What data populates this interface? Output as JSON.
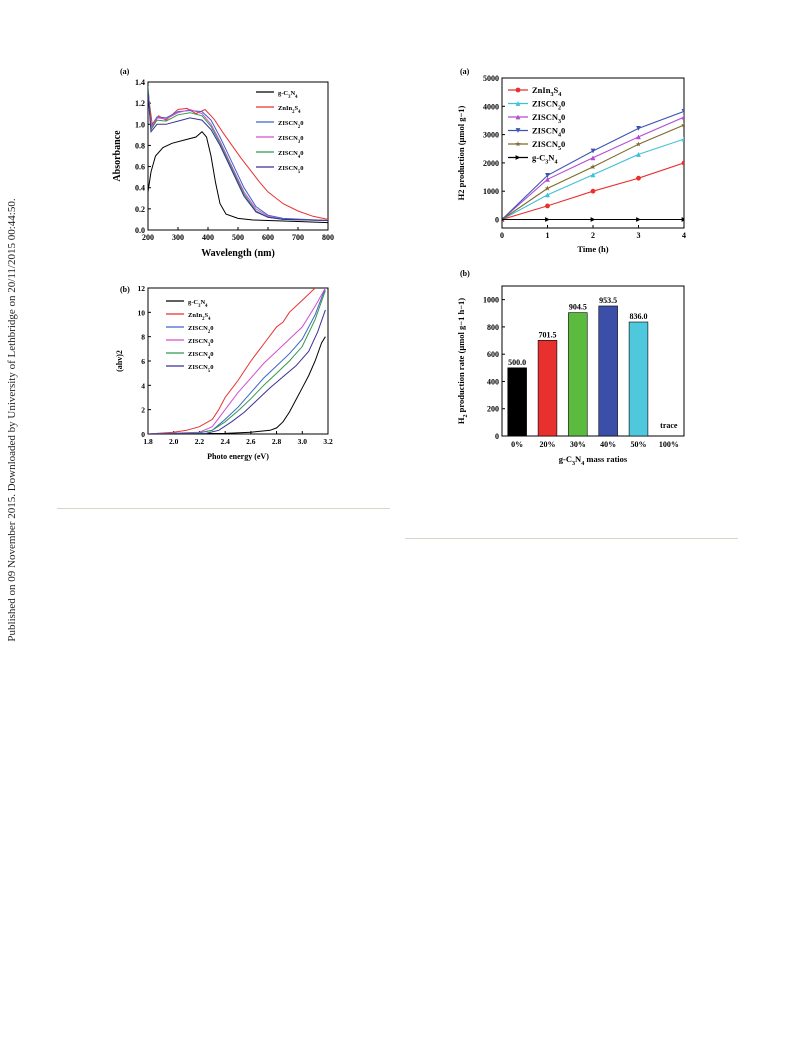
{
  "page": {
    "side_note": "Published on 09 November 2015. Downloaded by University of Lethbridge on 20/11/2015 00:44:50."
  },
  "chart_data": [
    {
      "type": "line",
      "panel_label": "(a)",
      "xlabel": "Wavelength (nm)",
      "ylabel": "Absorbance",
      "xlim": [
        200,
        800
      ],
      "ylim": [
        0.0,
        1.4
      ],
      "x_ticks": [
        "200",
        "300",
        "400",
        "500",
        "600",
        "700",
        "800"
      ],
      "y_ticks": [
        "0.0",
        "0.2",
        "0.4",
        "0.6",
        "0.8",
        "1.0",
        "1.2",
        "1.4"
      ],
      "legend_position": "top-right",
      "series": [
        {
          "name": "g-C3N4",
          "color": "#000000",
          "points": [
            [
              200,
              0.36
            ],
            [
              210,
              0.55
            ],
            [
              225,
              0.7
            ],
            [
              250,
              0.78
            ],
            [
              280,
              0.82
            ],
            [
              320,
              0.85
            ],
            [
              360,
              0.88
            ],
            [
              380,
              0.93
            ],
            [
              395,
              0.88
            ],
            [
              410,
              0.7
            ],
            [
              425,
              0.45
            ],
            [
              440,
              0.25
            ],
            [
              460,
              0.15
            ],
            [
              500,
              0.11
            ],
            [
              550,
              0.095
            ],
            [
              600,
              0.09
            ],
            [
              700,
              0.08
            ],
            [
              800,
              0.07
            ]
          ]
        },
        {
          "name": "ZnIn2S4",
          "color": "#e8312f",
          "points": [
            [
              200,
              1.3
            ],
            [
              215,
              0.98
            ],
            [
              235,
              1.08
            ],
            [
              260,
              1.04
            ],
            [
              300,
              1.14
            ],
            [
              330,
              1.15
            ],
            [
              360,
              1.1
            ],
            [
              390,
              1.14
            ],
            [
              420,
              1.05
            ],
            [
              450,
              0.92
            ],
            [
              480,
              0.8
            ],
            [
              510,
              0.68
            ],
            [
              540,
              0.57
            ],
            [
              570,
              0.46
            ],
            [
              600,
              0.36
            ],
            [
              650,
              0.25
            ],
            [
              700,
              0.18
            ],
            [
              750,
              0.13
            ],
            [
              800,
              0.1
            ]
          ]
        },
        {
          "name": "ZISCN20",
          "color": "#3c63c9",
          "points": [
            [
              200,
              1.36
            ],
            [
              210,
              0.98
            ],
            [
              230,
              1.07
            ],
            [
              260,
              1.06
            ],
            [
              300,
              1.12
            ],
            [
              340,
              1.13
            ],
            [
              380,
              1.12
            ],
            [
              410,
              1.04
            ],
            [
              440,
              0.88
            ],
            [
              480,
              0.64
            ],
            [
              520,
              0.4
            ],
            [
              560,
              0.22
            ],
            [
              600,
              0.14
            ],
            [
              650,
              0.11
            ],
            [
              800,
              0.09
            ]
          ]
        },
        {
          "name": "ZISCN30",
          "color": "#d34fd0",
          "points": [
            [
              200,
              1.34
            ],
            [
              210,
              0.97
            ],
            [
              230,
              1.06
            ],
            [
              260,
              1.05
            ],
            [
              300,
              1.11
            ],
            [
              340,
              1.14
            ],
            [
              380,
              1.1
            ],
            [
              410,
              1.0
            ],
            [
              440,
              0.84
            ],
            [
              480,
              0.6
            ],
            [
              520,
              0.36
            ],
            [
              560,
              0.2
            ],
            [
              600,
              0.13
            ],
            [
              650,
              0.1
            ],
            [
              800,
              0.09
            ]
          ]
        },
        {
          "name": "ZISCN40",
          "color": "#2f9a4c",
          "points": [
            [
              200,
              1.35
            ],
            [
              210,
              0.95
            ],
            [
              230,
              1.04
            ],
            [
              260,
              1.03
            ],
            [
              300,
              1.09
            ],
            [
              340,
              1.11
            ],
            [
              380,
              1.08
            ],
            [
              410,
              0.98
            ],
            [
              440,
              0.82
            ],
            [
              480,
              0.58
            ],
            [
              520,
              0.34
            ],
            [
              560,
              0.18
            ],
            [
              600,
              0.12
            ],
            [
              650,
              0.1
            ],
            [
              800,
              0.09
            ]
          ]
        },
        {
          "name": "ZISCN50",
          "color": "#3b3096",
          "points": [
            [
              200,
              1.3
            ],
            [
              210,
              0.93
            ],
            [
              230,
              1.0
            ],
            [
              260,
              1.0
            ],
            [
              300,
              1.03
            ],
            [
              340,
              1.06
            ],
            [
              380,
              1.04
            ],
            [
              410,
              0.95
            ],
            [
              440,
              0.8
            ],
            [
              480,
              0.56
            ],
            [
              520,
              0.32
            ],
            [
              560,
              0.17
            ],
            [
              600,
              0.12
            ],
            [
              650,
              0.1
            ],
            [
              800,
              0.09
            ]
          ]
        }
      ]
    },
    {
      "type": "line",
      "panel_label": "(b)",
      "xlabel": "Photo energy (eV)",
      "ylabel": "(ahv)2",
      "xlim": [
        1.8,
        3.2
      ],
      "ylim": [
        0,
        12
      ],
      "x_ticks": [
        "1.8",
        "2.0",
        "2.2",
        "2.4",
        "2.6",
        "2.8",
        "3.0",
        "3.2"
      ],
      "y_ticks": [
        "0",
        "2",
        "4",
        "6",
        "8",
        "10",
        "12"
      ],
      "legend_position": "top-left",
      "series": [
        {
          "name": "g-C3N4",
          "color": "#000000",
          "points": [
            [
              1.8,
              0.0
            ],
            [
              2.4,
              0.05
            ],
            [
              2.6,
              0.15
            ],
            [
              2.75,
              0.3
            ],
            [
              2.8,
              0.5
            ],
            [
              2.85,
              1.0
            ],
            [
              2.9,
              1.8
            ],
            [
              2.95,
              2.8
            ],
            [
              3.0,
              3.8
            ],
            [
              3.05,
              4.8
            ],
            [
              3.1,
              6.0
            ],
            [
              3.15,
              7.5
            ],
            [
              3.18,
              8.0
            ]
          ]
        },
        {
          "name": "ZnIn2S4",
          "color": "#e8312f",
          "points": [
            [
              1.8,
              0.0
            ],
            [
              2.0,
              0.15
            ],
            [
              2.1,
              0.3
            ],
            [
              2.2,
              0.6
            ],
            [
              2.3,
              1.2
            ],
            [
              2.35,
              2.0
            ],
            [
              2.4,
              3.0
            ],
            [
              2.5,
              4.4
            ],
            [
              2.6,
              6.0
            ],
            [
              2.7,
              7.4
            ],
            [
              2.8,
              8.8
            ],
            [
              2.85,
              9.2
            ],
            [
              2.9,
              10.0
            ],
            [
              3.0,
              11.0
            ],
            [
              3.1,
              12.0
            ]
          ]
        },
        {
          "name": "ZISCN20",
          "color": "#3c63c9",
          "points": [
            [
              1.8,
              0.0
            ],
            [
              2.2,
              0.1
            ],
            [
              2.3,
              0.3
            ],
            [
              2.4,
              1.2
            ],
            [
              2.5,
              2.2
            ],
            [
              2.6,
              3.4
            ],
            [
              2.7,
              4.6
            ],
            [
              2.8,
              5.6
            ],
            [
              2.9,
              6.6
            ],
            [
              3.0,
              7.8
            ],
            [
              3.1,
              9.8
            ],
            [
              3.18,
              12.0
            ]
          ]
        },
        {
          "name": "ZISCN30",
          "color": "#d34fd0",
          "points": [
            [
              1.8,
              0.0
            ],
            [
              2.2,
              0.15
            ],
            [
              2.3,
              0.6
            ],
            [
              2.4,
              2.0
            ],
            [
              2.5,
              3.4
            ],
            [
              2.6,
              4.6
            ],
            [
              2.7,
              5.8
            ],
            [
              2.8,
              6.8
            ],
            [
              2.9,
              7.8
            ],
            [
              3.0,
              8.8
            ],
            [
              3.1,
              10.5
            ],
            [
              3.18,
              12.0
            ]
          ]
        },
        {
          "name": "ZISCN40",
          "color": "#2f9a4c",
          "points": [
            [
              1.8,
              0.0
            ],
            [
              2.2,
              0.1
            ],
            [
              2.3,
              0.3
            ],
            [
              2.4,
              1.0
            ],
            [
              2.5,
              1.9
            ],
            [
              2.6,
              2.9
            ],
            [
              2.7,
              4.0
            ],
            [
              2.8,
              5.0
            ],
            [
              2.9,
              6.0
            ],
            [
              3.0,
              7.2
            ],
            [
              3.1,
              9.4
            ],
            [
              3.18,
              11.8
            ]
          ]
        },
        {
          "name": "ZISCN50",
          "color": "#3b3096",
          "points": [
            [
              1.8,
              0.0
            ],
            [
              2.25,
              0.05
            ],
            [
              2.35,
              0.3
            ],
            [
              2.45,
              1.0
            ],
            [
              2.55,
              1.8
            ],
            [
              2.65,
              2.8
            ],
            [
              2.75,
              3.8
            ],
            [
              2.85,
              4.7
            ],
            [
              2.95,
              5.6
            ],
            [
              3.05,
              6.8
            ],
            [
              3.12,
              8.4
            ],
            [
              3.18,
              10.2
            ]
          ]
        }
      ]
    },
    {
      "type": "line",
      "panel_label": "(a)",
      "xlabel": "Time (h)",
      "ylabel": "H2 production (μmol g−1)",
      "xlim": [
        0,
        4
      ],
      "ylim": [
        -300,
        5000
      ],
      "x_ticks": [
        "0",
        "1",
        "2",
        "3",
        "4"
      ],
      "y_ticks": [
        "0",
        "1000",
        "2000",
        "3000",
        "4000",
        "5000"
      ],
      "legend_position": "top-left",
      "series": [
        {
          "name": "ZnIn3S4",
          "color": "#e8312f",
          "marker": "circle",
          "points": [
            [
              0,
              0
            ],
            [
              1,
              480
            ],
            [
              2,
              1000
            ],
            [
              3,
              1460
            ],
            [
              4,
              2000
            ]
          ]
        },
        {
          "name": "ZISCN20",
          "color": "#3fc0d6",
          "marker": "triangle-up",
          "points": [
            [
              0,
              0
            ],
            [
              1,
              870
            ],
            [
              2,
              1580
            ],
            [
              3,
              2300
            ],
            [
              4,
              2840
            ]
          ]
        },
        {
          "name": "ZISCN30",
          "color": "#b34ad1",
          "marker": "triangle-up",
          "points": [
            [
              0,
              0
            ],
            [
              1,
              1420
            ],
            [
              2,
              2180
            ],
            [
              3,
              2920
            ],
            [
              4,
              3620
            ]
          ]
        },
        {
          "name": "ZISCN40",
          "color": "#3c55b5",
          "marker": "triangle-down",
          "points": [
            [
              0,
              0
            ],
            [
              1,
              1560
            ],
            [
              2,
              2420
            ],
            [
              3,
              3220
            ],
            [
              4,
              3820
            ]
          ]
        },
        {
          "name": "ZISCN50",
          "color": "#7d6a2a",
          "marker": "star",
          "points": [
            [
              0,
              0
            ],
            [
              1,
              1100
            ],
            [
              2,
              1860
            ],
            [
              3,
              2660
            ],
            [
              4,
              3340
            ]
          ]
        },
        {
          "name": "g-C3N4",
          "color": "#000000",
          "marker": "triangle-right",
          "points": [
            [
              0,
              0
            ],
            [
              1,
              0
            ],
            [
              2,
              0
            ],
            [
              3,
              0
            ],
            [
              4,
              0
            ]
          ]
        }
      ]
    },
    {
      "type": "bar",
      "panel_label": "(b)",
      "xlabel": "g-C3N4 mass ratios",
      "ylabel": "H2 production rate (μmol g−1 h−1)",
      "ylim": [
        0,
        1100
      ],
      "y_ticks": [
        "0",
        "200",
        "400",
        "600",
        "800",
        "1000"
      ],
      "categories": [
        "0%",
        "20%",
        "30%",
        "40%",
        "50%",
        "100%"
      ],
      "values": [
        500.0,
        701.5,
        904.5,
        953.5,
        836.0,
        0
      ],
      "value_labels": [
        "500.0",
        "701.5",
        "904.5",
        "953.5",
        "836.0",
        "trace"
      ],
      "colors": [
        "#000000",
        "#e8312f",
        "#5bbb3f",
        "#3b4fa8",
        "#4fc7dd",
        "#ffffff"
      ]
    }
  ]
}
